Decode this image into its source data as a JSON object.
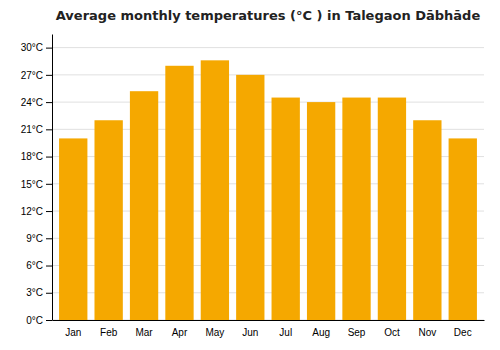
{
  "chart_data": {
    "type": "bar",
    "title": "Average monthly temperatures (°C ) in Talegaon Dābhāde",
    "categories": [
      "Jan",
      "Feb",
      "Mar",
      "Apr",
      "May",
      "Jun",
      "Jul",
      "Aug",
      "Sep",
      "Oct",
      "Nov",
      "Dec"
    ],
    "values": [
      20.0,
      22.0,
      25.2,
      28.0,
      28.6,
      27.0,
      24.5,
      24.0,
      24.5,
      24.5,
      22.0,
      20.0
    ],
    "color": "#F5A800",
    "ylim": [
      0,
      31.5
    ],
    "yticks": [
      {
        "value": 0,
        "label": "0°C"
      },
      {
        "value": 3,
        "label": "3°C"
      },
      {
        "value": 6,
        "label": "6°C"
      },
      {
        "value": 9,
        "label": "9°C"
      },
      {
        "value": 12,
        "label": "12°C"
      },
      {
        "value": 15,
        "label": "15°C"
      },
      {
        "value": 18,
        "label": "18°C"
      },
      {
        "value": 21,
        "label": "21°C"
      },
      {
        "value": 24,
        "label": "24°C"
      },
      {
        "value": 27,
        "label": "27°C"
      },
      {
        "value": 30,
        "label": "30°C"
      }
    ],
    "grid": true
  }
}
